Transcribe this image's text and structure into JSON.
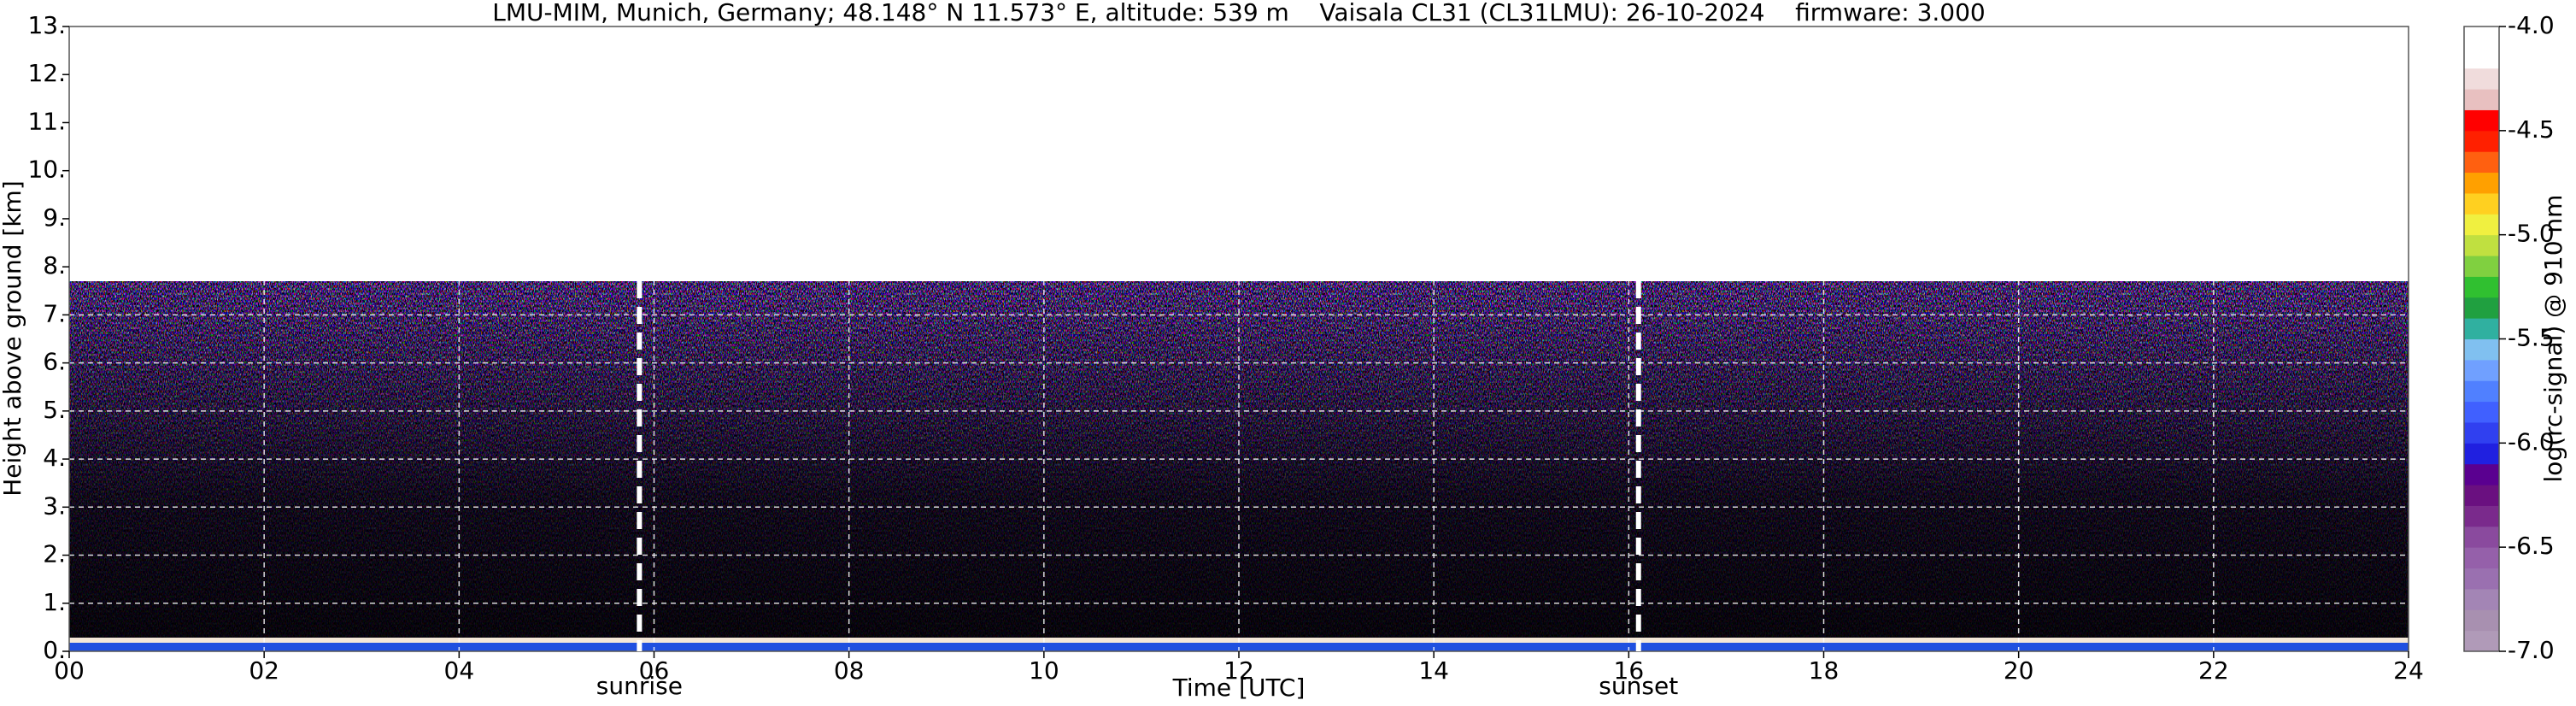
{
  "chart_data": {
    "type": "heatmap",
    "title": "LMU-MIM, Munich, Germany; 48.148° N 11.573° E, altitude: 539 m    Vaisala CL31 (CL31LMU): 26-10-2024    firmware: 3.000",
    "x_label": "Time [UTC]",
    "y_label": "Height above ground [km]",
    "xlim": [
      0,
      24
    ],
    "xticks": [
      {
        "value": 0,
        "label": "00"
      },
      {
        "value": 2,
        "label": "02"
      },
      {
        "value": 4,
        "label": "04"
      },
      {
        "value": 6,
        "label": "06"
      },
      {
        "value": 8,
        "label": "08"
      },
      {
        "value": 10,
        "label": "10"
      },
      {
        "value": 12,
        "label": "12"
      },
      {
        "value": 14,
        "label": "14"
      },
      {
        "value": 16,
        "label": "16"
      },
      {
        "value": 18,
        "label": "18"
      },
      {
        "value": 20,
        "label": "20"
      },
      {
        "value": 22,
        "label": "22"
      },
      {
        "value": 24,
        "label": "24"
      }
    ],
    "ylim": [
      0,
      13
    ],
    "yticks": [
      {
        "value": 0,
        "label": "0."
      },
      {
        "value": 1,
        "label": "1."
      },
      {
        "value": 2,
        "label": "2."
      },
      {
        "value": 3,
        "label": "3."
      },
      {
        "value": 4,
        "label": "4."
      },
      {
        "value": 5,
        "label": "5."
      },
      {
        "value": 6,
        "label": "6."
      },
      {
        "value": 7,
        "label": "7."
      },
      {
        "value": 8,
        "label": "8."
      },
      {
        "value": 9,
        "label": "9."
      },
      {
        "value": 10,
        "label": "10."
      },
      {
        "value": 11,
        "label": "11."
      },
      {
        "value": 12,
        "label": "12."
      },
      {
        "value": 13,
        "label": "13."
      }
    ],
    "grid": true,
    "annotations": [
      {
        "x": 5.85,
        "text": "sunrise"
      },
      {
        "x": 16.1,
        "text": "sunset"
      }
    ],
    "colorbar": {
      "label": "log(rc-signal) @ 910 nm",
      "lim": [
        -7.0,
        -4.0
      ],
      "ticks": [
        {
          "value": -7.0,
          "label": "-7.0"
        },
        {
          "value": -6.5,
          "label": "-6.5"
        },
        {
          "value": -6.0,
          "label": "-6.0"
        },
        {
          "value": -5.5,
          "label": "-5.5"
        },
        {
          "value": -5.0,
          "label": "-5.0"
        },
        {
          "value": -4.5,
          "label": "-4.5"
        },
        {
          "value": -4.0,
          "label": "-4.0"
        }
      ],
      "colors": [
        "#b09ab8",
        "#a890b0",
        "#a385b5",
        "#9a70b0",
        "#9560aa",
        "#8a4a9e",
        "#7a2a8c",
        "#6a1080",
        "#5a0090",
        "#2020e0",
        "#3040f0",
        "#4060ff",
        "#5080ff",
        "#70a0ff",
        "#80c0f0",
        "#30b0a0",
        "#20a040",
        "#30c030",
        "#80d040",
        "#c0e040",
        "#f0f040",
        "#ffd020",
        "#ffa000",
        "#ff6010",
        "#ff2000",
        "#ff0000",
        "#e8c0c0",
        "#f0dcdc",
        "#ffffff",
        "#ffffff"
      ]
    }
  }
}
